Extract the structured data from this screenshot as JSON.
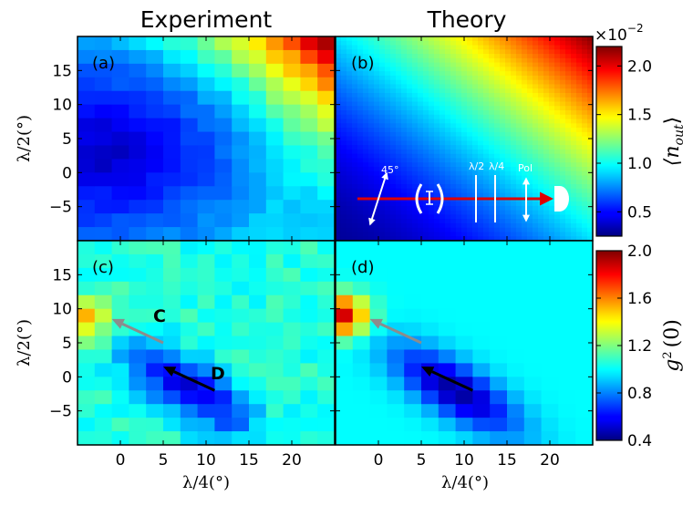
{
  "figure": {
    "col_titles": [
      "Experiment",
      "Theory"
    ],
    "panel_labels": [
      "(a)",
      "(b)",
      "(c)",
      "(d)"
    ],
    "xlabel": "λ/4(°)",
    "ylabel": "λ/2(°)",
    "x_ticks": [
      "0",
      "5",
      "10",
      "15",
      "20"
    ],
    "y_ticks": [
      "15",
      "10",
      "5",
      "0",
      "−5"
    ],
    "annotations": {
      "gray_arrow": "C",
      "black_arrow": "D"
    },
    "colorbar_top": {
      "multiplier": "×10",
      "exponent": "−2",
      "label": "⟨n",
      "label_sub": "out",
      "label_close": "⟩",
      "ticks": [
        "2.0",
        "1.5",
        "1.0",
        "0.5"
      ]
    },
    "colorbar_bottom": {
      "label": "g",
      "label_sup": "2",
      "label_arg": "(0)",
      "ticks": [
        "2.0",
        "1.6",
        "1.2",
        "0.8",
        "0.4"
      ]
    },
    "inset": {
      "angle": "45°",
      "half_wave": "λ/2",
      "quarter_wave": "λ/4",
      "polarizer": "Pol"
    }
  },
  "chart_data": [
    {
      "type": "heatmap",
      "panel": "(a)",
      "title": "Experiment",
      "quantity": "⟨n_out⟩ ×10^-2",
      "xlim": [
        -5,
        25
      ],
      "ylim": [
        -10,
        20
      ],
      "color_range": [
        0.25,
        2.2
      ],
      "colormap": "jet",
      "model": {
        "min_at": [
          -2,
          3
        ],
        "max_at": [
          24,
          19
        ],
        "min": 0.35,
        "max": 2.15
      }
    },
    {
      "type": "heatmap",
      "panel": "(b)",
      "title": "Theory",
      "quantity": "⟨n_out⟩ ×10^-2",
      "xlim": [
        -5,
        25
      ],
      "ylim": [
        -10,
        20
      ],
      "color_range": [
        0.25,
        2.2
      ],
      "colormap": "jet",
      "model": {
        "min_at": [
          -5,
          -10
        ],
        "max_at": [
          25,
          20
        ],
        "min": 0.3,
        "max": 2.2
      }
    },
    {
      "type": "heatmap",
      "panel": "(c)",
      "title": "Experiment",
      "quantity": "g2(0)",
      "xlim": [
        -5,
        25
      ],
      "ylim": [
        -10,
        20
      ],
      "color_range": [
        0.4,
        2.0
      ],
      "colormap": "jet",
      "features": {
        "bunching_peak": [
          -4,
          8.5,
          1.55
        ],
        "antibunching_min": [
          8,
          -2,
          0.55
        ],
        "background": 1.05
      },
      "arrows": [
        {
          "label": "C",
          "from": [
            5,
            5
          ],
          "to": [
            -1,
            8.5
          ],
          "color": "gray"
        },
        {
          "label": "D",
          "from": [
            11,
            -2
          ],
          "to": [
            5,
            1.5
          ],
          "color": "black"
        }
      ]
    },
    {
      "type": "heatmap",
      "panel": "(d)",
      "title": "Theory",
      "quantity": "g2(0)",
      "xlim": [
        -5,
        25
      ],
      "ylim": [
        -10,
        20
      ],
      "color_range": [
        0.4,
        2.0
      ],
      "colormap": "jet",
      "features": {
        "bunching_peak": [
          -4.5,
          9,
          1.9
        ],
        "antibunching_min": [
          9,
          -2,
          0.45
        ],
        "background": 1.0
      },
      "arrows": [
        {
          "label": "",
          "from": [
            5,
            5
          ],
          "to": [
            -1,
            8.5
          ],
          "color": "gray"
        },
        {
          "label": "",
          "from": [
            11,
            -2
          ],
          "to": [
            5,
            1.5
          ],
          "color": "black"
        }
      ]
    }
  ]
}
